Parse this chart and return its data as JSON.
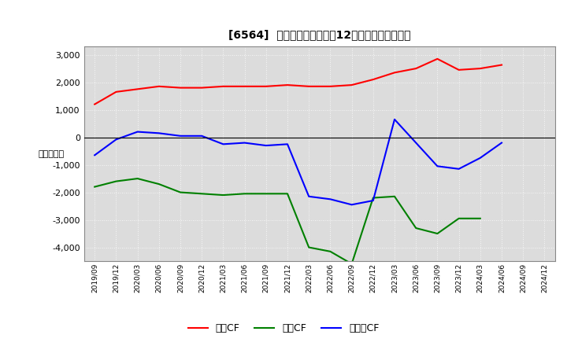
{
  "title": "[6564]  キャッシュフローの12か月移動合計の推移",
  "ylabel": "（百万円）",
  "ylim": [
    -4500,
    3300
  ],
  "yticks": [
    -4000,
    -3000,
    -2000,
    -1000,
    0,
    1000,
    2000,
    3000
  ],
  "background_color": "#ffffff",
  "plot_bg_color": "#dcdcdc",
  "dates": [
    "2019/09",
    "2019/12",
    "2020/03",
    "2020/06",
    "2020/09",
    "2020/12",
    "2021/03",
    "2021/06",
    "2021/09",
    "2021/12",
    "2022/03",
    "2022/06",
    "2022/09",
    "2022/12",
    "2023/03",
    "2023/06",
    "2023/09",
    "2023/12",
    "2024/03",
    "2024/06",
    "2024/09",
    "2024/12"
  ],
  "operating_cf": [
    1200,
    1650,
    1750,
    1850,
    1800,
    1800,
    1850,
    1850,
    1850,
    1900,
    1850,
    1850,
    1900,
    2100,
    2350,
    2500,
    2850,
    2450,
    2500,
    2630,
    null,
    null
  ],
  "investing_cf": [
    -1800,
    -1600,
    -1500,
    -1700,
    -2000,
    -2050,
    -2100,
    -2050,
    -2050,
    -2050,
    -4000,
    -4150,
    -4600,
    -2200,
    -2150,
    -3300,
    -3500,
    -2950,
    -2950,
    null,
    null,
    null
  ],
  "free_cf": [
    -650,
    -80,
    200,
    150,
    50,
    50,
    -250,
    -200,
    -300,
    -250,
    -2150,
    -2250,
    -2450,
    -2300,
    650,
    -200,
    -1050,
    -1150,
    -750,
    -200,
    null,
    null
  ],
  "operating_color": "#ff0000",
  "investing_color": "#008000",
  "free_color": "#0000ff",
  "line_width": 1.5,
  "legend_labels": [
    "営業CF",
    "投資CF",
    "フリーCF"
  ]
}
